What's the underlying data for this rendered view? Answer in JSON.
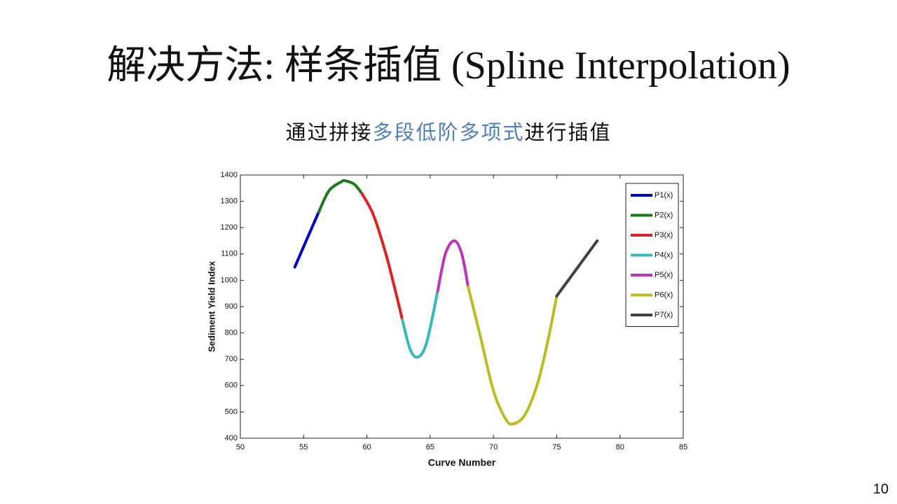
{
  "slide": {
    "title": "解决方法: 样条插值 (Spline Interpolation)",
    "subtitle_parts": [
      "通过拼接",
      "多段低阶多项式",
      "进行插值"
    ],
    "page_number": 10
  },
  "chart_data": {
    "type": "line",
    "xlabel": "Curve Number",
    "ylabel": "Sediment Yield Index",
    "xlim": [
      50,
      85
    ],
    "ylim": [
      400,
      1400
    ],
    "xticks": [
      50,
      55,
      60,
      65,
      70,
      75,
      80,
      85
    ],
    "yticks": [
      400,
      500,
      600,
      700,
      800,
      900,
      1000,
      1100,
      1200,
      1300,
      1400
    ],
    "grid": false,
    "legend": "upper right",
    "series": [
      {
        "name": "P1(x)",
        "color": "#0000cc",
        "x": [
          54.3,
          55.2,
          56.2
        ],
        "values": [
          1050,
          1150,
          1260
        ]
      },
      {
        "name": "P2(x)",
        "color": "#1a7a1a",
        "x": [
          56.2,
          57,
          58,
          58.3,
          59,
          59.6
        ],
        "values": [
          1260,
          1340,
          1375,
          1378,
          1365,
          1330
        ]
      },
      {
        "name": "P3(x)",
        "color": "#dd2222",
        "x": [
          59.6,
          60.5,
          61.5,
          62.3,
          62.8
        ],
        "values": [
          1330,
          1250,
          1100,
          950,
          850
        ]
      },
      {
        "name": "P4(x)",
        "color": "#33bbbb",
        "x": [
          62.8,
          63.4,
          64,
          64.7,
          65.6
        ],
        "values": [
          850,
          740,
          708,
          760,
          960
        ]
      },
      {
        "name": "P5(x)",
        "color": "#bb33bb",
        "x": [
          65.6,
          66.2,
          66.9,
          67.5,
          68
        ],
        "values": [
          960,
          1100,
          1150,
          1100,
          975
        ]
      },
      {
        "name": "P6(x)",
        "color": "#bbbb22",
        "x": [
          68,
          69,
          70,
          71,
          71.6,
          72.5,
          73.5,
          74.3,
          75
        ],
        "values": [
          975,
          780,
          580,
          470,
          455,
          490,
          610,
          770,
          940
        ]
      },
      {
        "name": "P7(x)",
        "color": "#404040",
        "x": [
          75,
          76.6,
          78.2
        ],
        "values": [
          940,
          1045,
          1150
        ]
      }
    ]
  }
}
